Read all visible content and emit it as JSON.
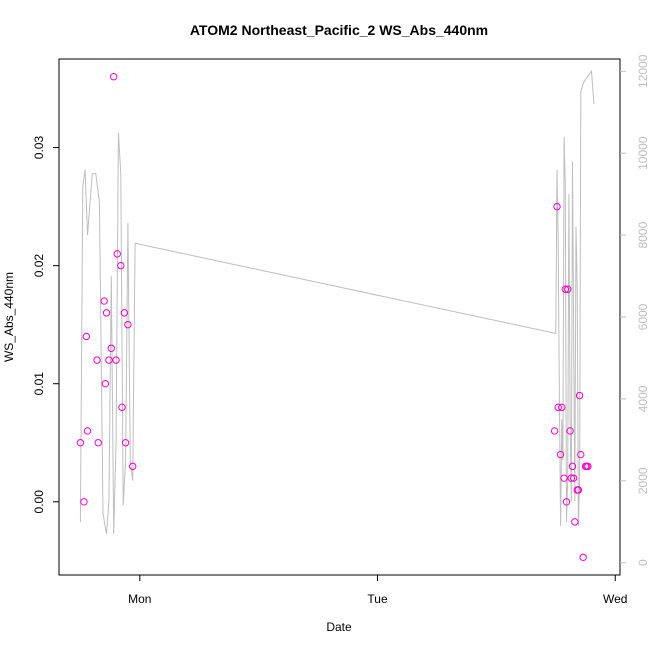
{
  "chart_data": {
    "type": "scatter",
    "title": "ATOM2 Northeast_Pacific_2 WS_Abs_440nm",
    "xlabel": "Date",
    "ylabel": "WS_Abs_440nm",
    "x_unit": "days since Mon 00:00",
    "xlim": [
      -0.34,
      2.02
    ],
    "ylim": [
      -0.0062,
      0.0375
    ],
    "x_ticks": [
      {
        "value": 0,
        "label": "Mon"
      },
      {
        "value": 1,
        "label": "Tue"
      },
      {
        "value": 2,
        "label": "Wed"
      }
    ],
    "y_ticks": [
      {
        "value": 0.0,
        "label": "0.00"
      },
      {
        "value": 0.01,
        "label": "0.01"
      },
      {
        "value": 0.02,
        "label": "0.02"
      },
      {
        "value": 0.03,
        "label": "0.03"
      }
    ],
    "y2lim": [
      -300,
      12300
    ],
    "y2_ticks": [
      {
        "value": 0,
        "label": "0"
      },
      {
        "value": 2000,
        "label": "2000"
      },
      {
        "value": 4000,
        "label": "4000"
      },
      {
        "value": 6000,
        "label": "6000"
      },
      {
        "value": 8000,
        "label": "8000"
      },
      {
        "value": 10000,
        "label": "10000"
      },
      {
        "value": 12000,
        "label": "12000"
      }
    ],
    "colors": {
      "points": "#ff00cc",
      "secondary_line": "#bebebe",
      "right_axis": "#bebebe"
    },
    "grid": false,
    "series": [
      {
        "kind": "points",
        "x": [
          -0.25,
          -0.235,
          -0.225,
          -0.22,
          -0.18,
          -0.175,
          -0.15,
          -0.145,
          -0.14,
          -0.13,
          -0.12,
          -0.11,
          -0.1,
          -0.095,
          -0.08,
          -0.075,
          -0.065,
          -0.06,
          -0.05,
          -0.03,
          1.745,
          1.755,
          1.76,
          1.77,
          1.775,
          1.785,
          1.79,
          1.795,
          1.8,
          1.81,
          1.815,
          1.82,
          1.825,
          1.83,
          1.84,
          1.845,
          1.85,
          1.855,
          1.865,
          1.875,
          1.88,
          1.885
        ],
        "y": [
          0.005,
          0.0,
          0.014,
          0.006,
          0.012,
          0.005,
          0.017,
          0.01,
          0.016,
          0.012,
          0.013,
          0.036,
          0.012,
          0.021,
          0.02,
          0.008,
          0.016,
          0.005,
          0.015,
          0.003,
          0.006,
          0.025,
          0.008,
          0.004,
          0.008,
          0.002,
          0.018,
          0.0,
          0.018,
          0.006,
          0.002,
          0.003,
          0.002,
          -0.0017,
          0.001,
          0.001,
          0.009,
          0.004,
          -0.0047,
          0.003,
          0.003,
          0.003
        ]
      },
      {
        "kind": "line",
        "axis": "right",
        "x": [
          -0.25,
          -0.24,
          -0.23,
          -0.22,
          -0.2,
          -0.185,
          -0.17,
          -0.155,
          -0.14,
          -0.13,
          -0.12,
          -0.11,
          -0.1,
          -0.09,
          -0.08,
          -0.07,
          -0.06,
          -0.05,
          -0.04,
          -0.03,
          -0.02,
          1.75,
          1.755,
          1.76,
          1.765,
          1.77,
          1.775,
          1.78,
          1.785,
          1.79,
          1.795,
          1.8,
          1.805,
          1.81,
          1.815,
          1.82,
          1.825,
          1.83,
          1.835,
          1.84,
          1.845,
          1.85,
          1.855,
          1.86,
          1.865,
          1.875,
          1.9,
          1.91
        ],
        "y": [
          1000,
          9200,
          9600,
          8000,
          9500,
          9500,
          8800,
          1200,
          700,
          1500,
          7000,
          700,
          3000,
          10500,
          9500,
          1400,
          2500,
          8300,
          2500,
          2000,
          7800,
          5600,
          9600,
          7800,
          4000,
          900,
          3500,
          2500,
          10400,
          9200,
          1000,
          2000,
          9000,
          3500,
          1500,
          9800,
          5800,
          1500,
          8200,
          6700,
          900,
          2000,
          11500,
          11600,
          11700,
          11800,
          12000,
          11200
        ]
      }
    ]
  }
}
